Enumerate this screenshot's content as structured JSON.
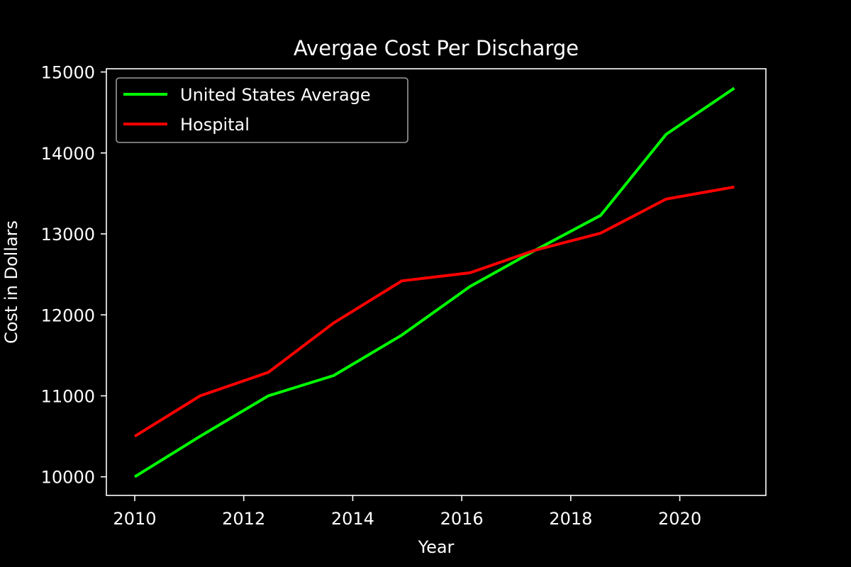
{
  "chart_data": {
    "type": "line",
    "title": "Avergae Cost Per Discharge",
    "xlabel": "Year",
    "ylabel": "Cost in Dollars",
    "xlim": [
      2009.48,
      2021.58
    ],
    "ylim": [
      9770,
      15040
    ],
    "xticks": [
      2010,
      2012,
      2014,
      2016,
      2018,
      2020
    ],
    "yticks": [
      10000,
      11000,
      12000,
      13000,
      14000,
      15000
    ],
    "grid": false,
    "legend": "upper-left",
    "series": [
      {
        "name": "United States Average",
        "color": "#00ff00",
        "x": [
          2010,
          2011.2,
          2012.45,
          2013.65,
          2014.9,
          2016.15,
          2017.35,
          2018.55,
          2019.75,
          2021
        ],
        "y": [
          10000,
          10500,
          11000,
          11250,
          11750,
          12350,
          12800,
          13230,
          14230,
          14800
        ]
      },
      {
        "name": "Hospital",
        "color": "#ff0000",
        "x": [
          2010,
          2011.2,
          2012.45,
          2013.65,
          2014.9,
          2016.15,
          2017.35,
          2018.55,
          2019.75,
          2021
        ],
        "y": [
          10500,
          11000,
          11290,
          11900,
          12420,
          12520,
          12800,
          13010,
          13430,
          13580
        ]
      }
    ]
  }
}
